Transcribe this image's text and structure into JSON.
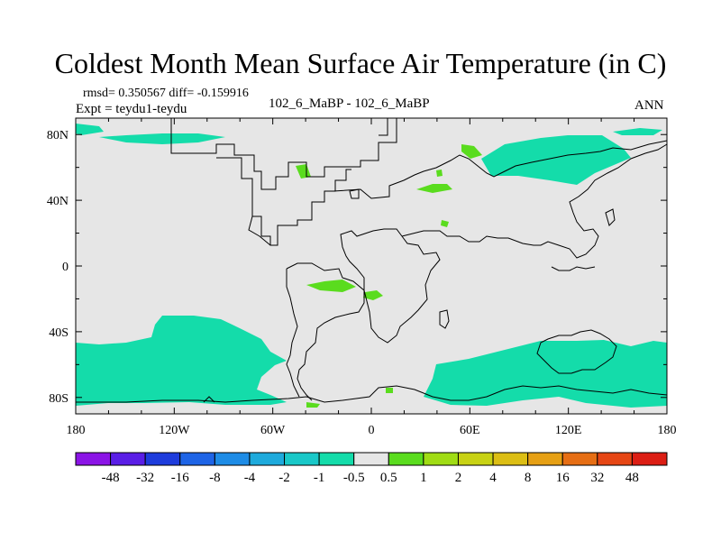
{
  "figure": {
    "title": "Coldest Month Mean Surface Air Temperature (in C)",
    "stats_line": "rmsd= 0.350567 diff= -0.159916",
    "expt_line": "Expt = teydu1-teydu",
    "center_label": "102_6_MaBP - 102_6_MaBP",
    "season_label": "ANN"
  },
  "chart_data": {
    "type": "heatmap",
    "title": "Coldest Month Mean Surface Air Temperature (in C)",
    "subtitle": "102_6_MaBP - 102_6_MaBP",
    "xlabel": "",
    "ylabel": "",
    "xlim": [
      -180,
      180
    ],
    "ylim": [
      -90,
      90
    ],
    "x_ticks": [
      {
        "value": -180,
        "label": "180"
      },
      {
        "value": -120,
        "label": "120W"
      },
      {
        "value": -60,
        "label": "60W"
      },
      {
        "value": 0,
        "label": "0"
      },
      {
        "value": 60,
        "label": "60E"
      },
      {
        "value": 120,
        "label": "120E"
      },
      {
        "value": 180,
        "label": "180"
      }
    ],
    "y_ticks": [
      {
        "value": 80,
        "label": "80N"
      },
      {
        "value": 40,
        "label": "40N"
      },
      {
        "value": 0,
        "label": "0"
      },
      {
        "value": -40,
        "label": "40S"
      },
      {
        "value": -80,
        "label": "80S"
      }
    ],
    "colorbar": {
      "labels": [
        "-48",
        "-32",
        "-16",
        "-8",
        "-4",
        "-2",
        "-1",
        "-0.5",
        "0.5",
        "1",
        "2",
        "4",
        "8",
        "16",
        "32",
        "48"
      ],
      "colors": [
        "#8b14e6",
        "#5a1ee6",
        "#1e3cdc",
        "#1e64e6",
        "#1e8ce6",
        "#1eaadc",
        "#19c8c8",
        "#14dcaa",
        "#e6e6e6",
        "#5adc1e",
        "#a0dc14",
        "#c8d214",
        "#dcbe14",
        "#e6a014",
        "#e66e14",
        "#e64614",
        "#dc1e14"
      ]
    },
    "regions": [
      {
        "name": "southern-ocean-pacific",
        "level": "-0.5"
      },
      {
        "name": "southern-ocean-indian",
        "level": "-0.5"
      },
      {
        "name": "arctic-siberia",
        "level": "-0.5"
      },
      {
        "name": "arctic-canada",
        "level": "-0.5"
      },
      {
        "name": "atlantic-tropics",
        "level": "0.5"
      },
      {
        "name": "north-atlantic",
        "level": "0.5"
      },
      {
        "name": "europe",
        "level": "0.5"
      }
    ]
  }
}
